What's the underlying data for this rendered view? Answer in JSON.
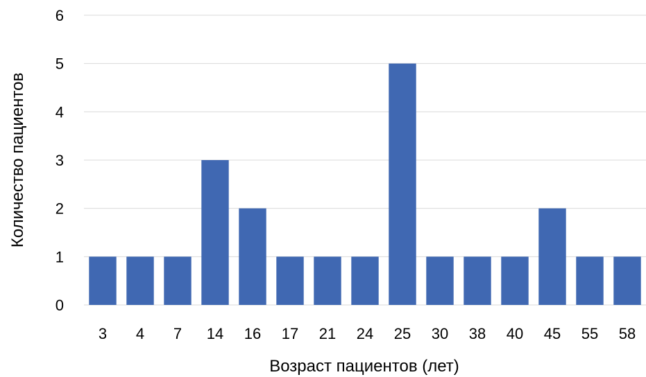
{
  "chart_data": {
    "type": "bar",
    "title": "",
    "xlabel": "Возраст пациентов (лет)",
    "ylabel": "Количество пациентов",
    "categories": [
      "3",
      "4",
      "7",
      "14",
      "16",
      "17",
      "21",
      "24",
      "25",
      "30",
      "38",
      "40",
      "45",
      "55",
      "58"
    ],
    "values": [
      1,
      1,
      1,
      3,
      2,
      1,
      1,
      1,
      5,
      1,
      1,
      1,
      2,
      1,
      1
    ],
    "ylim": [
      0,
      6
    ],
    "yticks": [
      0,
      1,
      2,
      3,
      4,
      5,
      6
    ],
    "grid": true,
    "legend": "none",
    "colors": {
      "bar": "#4068b2",
      "grid": "#d9d9d9",
      "text": "#000000"
    }
  }
}
